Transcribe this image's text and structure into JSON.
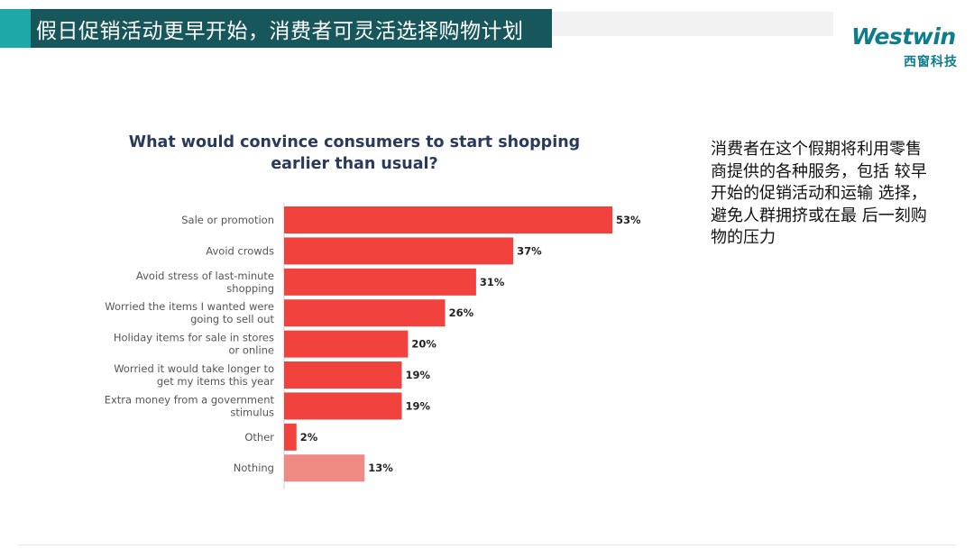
{
  "header": {
    "title": "假日促销活动更早开始，消费者可灵活选择购物计划"
  },
  "logo": {
    "wordmark": "Westwin",
    "subtitle": "西窗科技"
  },
  "side_note": "消费者在这个假期将利用零售商提供的各种服务，包括 较早开始的促销活动和运输 选择，避免人群拥挤或在最 后一刻购物的压力",
  "chart_data": {
    "type": "bar",
    "orientation": "horizontal",
    "title": "What would convince consumers to start shopping earlier than usual?",
    "categories": [
      [
        "Sale or promotion"
      ],
      [
        "Avoid crowds"
      ],
      [
        "Avoid stress of last-minute",
        "shopping"
      ],
      [
        "Worried the items I wanted were",
        "going to sell out"
      ],
      [
        "Holiday items for sale in stores",
        "or online"
      ],
      [
        "Worried it would take longer to",
        "get my items this year"
      ],
      [
        "Extra money from a government",
        "stimulus"
      ],
      [
        "Other"
      ],
      [
        "Nothing"
      ]
    ],
    "values": [
      53,
      37,
      31,
      26,
      20,
      19,
      19,
      2,
      13
    ],
    "value_labels": [
      "53%",
      "37%",
      "31%",
      "26%",
      "20%",
      "19%",
      "19%",
      "2%",
      "13%"
    ],
    "colors": [
      "#f2423d",
      "#f2423d",
      "#f2423d",
      "#f2423d",
      "#f2423d",
      "#f2423d",
      "#f2423d",
      "#f2423d",
      "#f08a85"
    ],
    "xlim": [
      0,
      53
    ],
    "grid": false,
    "legend": "none"
  }
}
